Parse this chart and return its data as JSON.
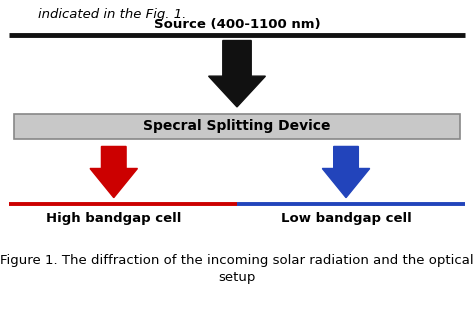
{
  "header_text": "indicated in the Fig. 1.",
  "title_text": "Source (400-1100 nm)",
  "device_label": "Specral Splitting Device",
  "left_label": "High bandgap cell",
  "right_label": "Low bandgap cell",
  "caption_line1": "Figure 1. The diffraction of the incoming solar radiation and the optical",
  "caption_line2": "setup",
  "bg_color": "#ffffff",
  "top_line_color": "#111111",
  "device_box_color": "#c8c8c8",
  "device_box_edge": "#888888",
  "black_arrow_color": "#111111",
  "red_arrow_color": "#cc0000",
  "blue_arrow_color": "#2244bb",
  "red_line_color": "#cc0000",
  "blue_line_color": "#2244bb",
  "title_fontsize": 9.5,
  "device_fontsize": 10,
  "label_fontsize": 9.5,
  "caption_fontsize": 9.5,
  "header_fontsize": 9.5
}
